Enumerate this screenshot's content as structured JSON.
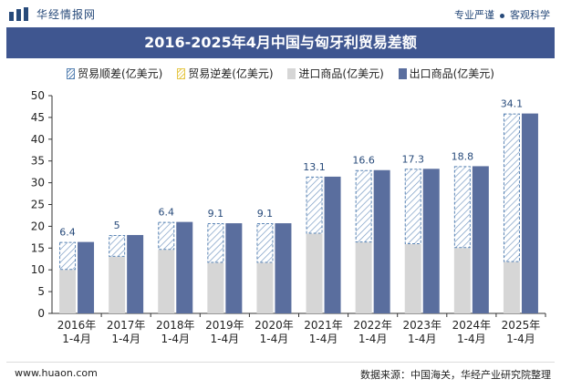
{
  "header": {
    "site_name": "华经情报网",
    "slogan_left": "专业严谨",
    "slogan_right": "客观科学"
  },
  "chart_data": {
    "type": "bar",
    "title": "2016-2025年4月中国与匈牙利贸易差额",
    "categories": [
      "2016年\n1-4月",
      "2017年\n1-4月",
      "2018年\n1-4月",
      "2019年\n1-4月",
      "2020年\n1-4月",
      "2021年\n1-4月",
      "2022年\n1-4月",
      "2023年\n1-4月",
      "2024年\n1-4月",
      "2025年\n1-4月"
    ],
    "series": [
      {
        "name": "贸易顺差(亿美元)",
        "values": [
          6.4,
          5,
          6.4,
          9.1,
          9.1,
          13.1,
          16.6,
          17.3,
          18.8,
          34.1
        ],
        "color": "#5a84b4"
      },
      {
        "name": "贸易逆差(亿美元)",
        "values": [
          0,
          0,
          0,
          0,
          0,
          0,
          0,
          0,
          0,
          0
        ],
        "color": "#e6c84a"
      },
      {
        "name": "进口商品(亿美元)",
        "values": [
          10,
          13,
          14.6,
          11.6,
          11.6,
          18.3,
          16.3,
          15.9,
          15,
          11.8
        ],
        "color": "#d6d6d6"
      },
      {
        "name": "出口商品(亿美元)",
        "values": [
          16.4,
          18,
          21,
          20.7,
          20.7,
          31.4,
          32.9,
          33.2,
          33.8,
          45.9
        ],
        "color": "#5a6e9e"
      }
    ],
    "data_labels": [
      "6.4",
      "5",
      "6.4",
      "9.1",
      "9.1",
      "13.1",
      "16.6",
      "17.3",
      "18.8",
      "34.1"
    ],
    "ylim": [
      0,
      50
    ],
    "yticks": [
      0,
      5,
      10,
      15,
      20,
      25,
      30,
      35,
      40,
      45,
      50
    ],
    "legend_position": "top"
  },
  "footer": {
    "website": "www.huaon.com",
    "source": "数据来源：中国海关，华经产业研究院整理"
  }
}
